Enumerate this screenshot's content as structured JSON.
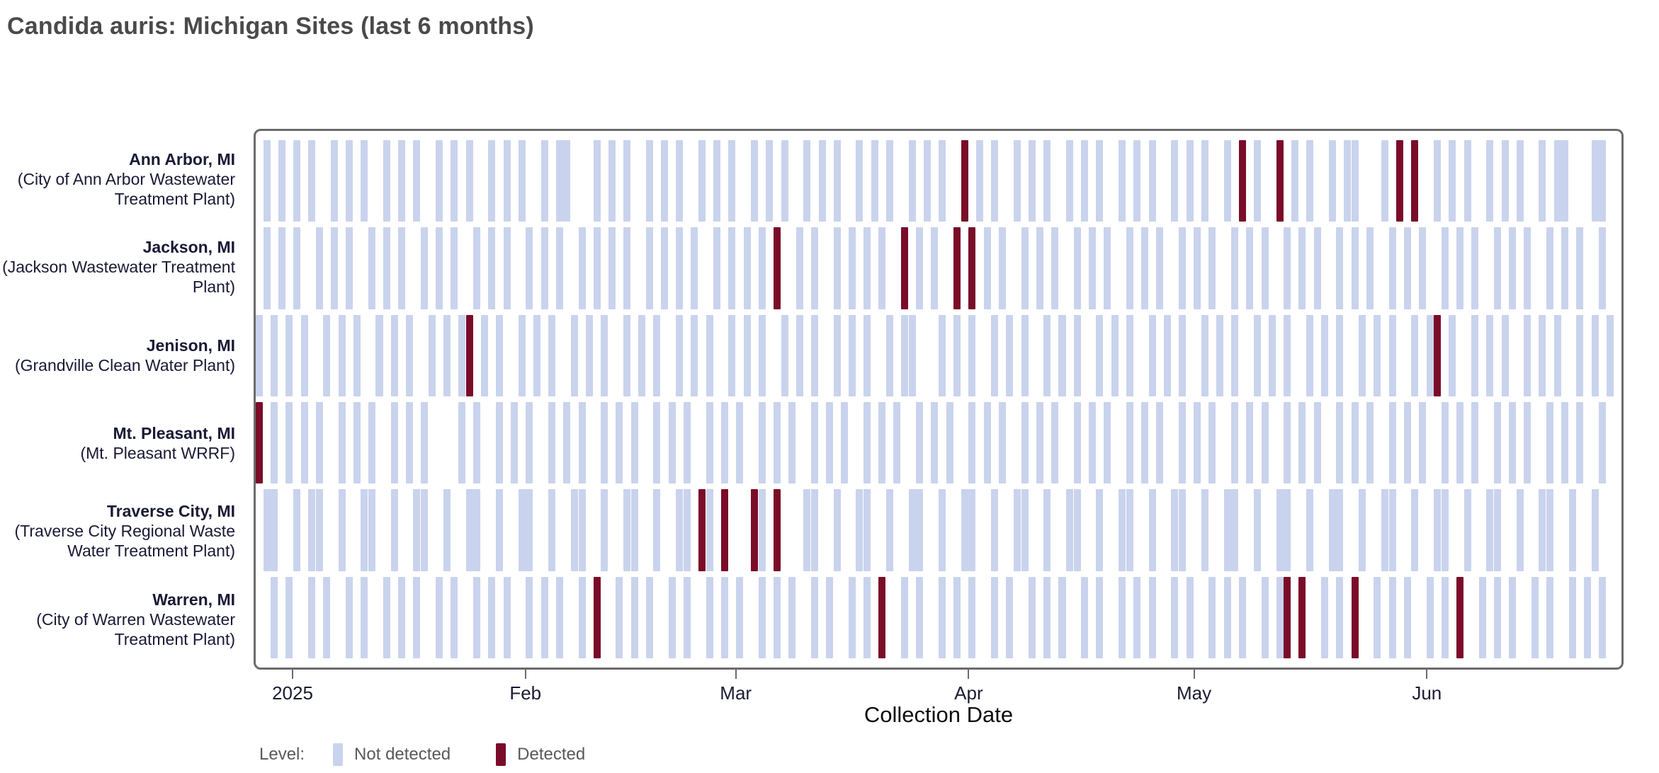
{
  "page": {
    "title": "Candida auris: Michigan Sites (last 6 months)"
  },
  "chart_data": {
    "type": "heatmap",
    "subtype": "detection-timeline-tiles",
    "title": "Candida auris: Michigan Sites (last 6 months)",
    "xlabel": "Collection Date",
    "day0_date": "2025-01-01",
    "x_domain_days": [
      -5,
      177
    ],
    "x_ticks": [
      {
        "day": 0,
        "label": "2025"
      },
      {
        "day": 31,
        "label": "Feb"
      },
      {
        "day": 59,
        "label": "Mar"
      },
      {
        "day": 90,
        "label": "Apr"
      },
      {
        "day": 120,
        "label": "May"
      },
      {
        "day": 151,
        "label": "Jun"
      }
    ],
    "grid": false,
    "legend_position": "bottom-left",
    "legend": {
      "prefix": "Level:",
      "items": [
        {
          "label": "Not detected",
          "color": "#cad3ed",
          "value": 0
        },
        {
          "label": "Detected",
          "color": "#7a0c29",
          "value": 1
        }
      ]
    },
    "colors": {
      "not_detected": "#cad3ed",
      "detected": "#7a0c29",
      "label_text": "#191936"
    },
    "sites": [
      {
        "city": "Ann Arbor, MI",
        "plant": "(City of Ann Arbor Wastewater Treatment Plant)",
        "samples": [
          -4,
          -2,
          0,
          2,
          5,
          7,
          9,
          12,
          14,
          16,
          19,
          21,
          23,
          26,
          28,
          30,
          33,
          35,
          36,
          40,
          42,
          44,
          47,
          49,
          51,
          54,
          56,
          58,
          61,
          63,
          65,
          68,
          70,
          72,
          75,
          77,
          79,
          82,
          84,
          86,
          89,
          91,
          93,
          96,
          98,
          100,
          103,
          105,
          107,
          110,
          112,
          114,
          117,
          119,
          121,
          124,
          126,
          128,
          131,
          133,
          135,
          138,
          140,
          141,
          145,
          147,
          149,
          152,
          154,
          156,
          159,
          161,
          163,
          166,
          168,
          169,
          173,
          174
        ],
        "detected": [
          89,
          126,
          131,
          147,
          149
        ],
        "detected_dates": [
          "2025-03-31",
          "2025-05-07",
          "2025-05-12",
          "2025-05-28",
          "2025-05-30"
        ]
      },
      {
        "city": "Jackson, MI",
        "plant": "(Jackson Wastewater Treatment Plant)",
        "samples": [
          -4,
          -2,
          0,
          3,
          5,
          7,
          10,
          12,
          14,
          17,
          19,
          21,
          24,
          26,
          28,
          31,
          33,
          35,
          38,
          40,
          42,
          44,
          47,
          49,
          51,
          53,
          56,
          58,
          60,
          62,
          64,
          67,
          69,
          72,
          74,
          76,
          78,
          81,
          83,
          85,
          88,
          90,
          92,
          94,
          97,
          99,
          101,
          104,
          106,
          108,
          111,
          113,
          115,
          118,
          120,
          122,
          125,
          127,
          129,
          132,
          134,
          136,
          139,
          141,
          143,
          146,
          148,
          150,
          153,
          155,
          157,
          160,
          162,
          164,
          167,
          169,
          171,
          174
        ],
        "detected": [
          64,
          81,
          88,
          90
        ],
        "detected_dates": [
          "2025-03-06",
          "2025-03-23",
          "2025-03-30",
          "2025-04-01"
        ]
      },
      {
        "city": "Jenison, MI",
        "plant": "(Grandville Clean Water Plant)",
        "samples": [
          -5,
          -3,
          -1,
          1,
          4,
          6,
          8,
          11,
          13,
          15,
          18,
          20,
          22,
          23,
          25,
          27,
          30,
          32,
          34,
          37,
          39,
          41,
          44,
          46,
          48,
          51,
          53,
          55,
          58,
          60,
          62,
          65,
          67,
          69,
          72,
          74,
          76,
          79,
          81,
          82,
          86,
          88,
          90,
          93,
          95,
          97,
          100,
          102,
          104,
          107,
          109,
          111,
          114,
          116,
          118,
          121,
          123,
          125,
          128,
          130,
          132,
          135,
          137,
          139,
          142,
          144,
          146,
          149,
          151,
          152,
          154,
          157,
          159,
          161,
          164,
          166,
          168,
          171,
          173,
          175
        ],
        "detected": [
          23,
          152
        ],
        "detected_dates": [
          "2025-01-24",
          "2025-06-02"
        ]
      },
      {
        "city": "Mt. Pleasant, MI",
        "plant": "(Mt. Pleasant WRRF)",
        "samples": [
          -5,
          -3,
          -1,
          1,
          3,
          6,
          8,
          10,
          13,
          15,
          17,
          22,
          24,
          27,
          29,
          31,
          34,
          36,
          38,
          41,
          43,
          45,
          48,
          50,
          52,
          55,
          57,
          59,
          62,
          64,
          66,
          69,
          71,
          73,
          76,
          78,
          80,
          83,
          85,
          87,
          90,
          92,
          94,
          97,
          99,
          101,
          104,
          106,
          108,
          111,
          113,
          115,
          118,
          120,
          122,
          125,
          127,
          129,
          132,
          134,
          136,
          139,
          141,
          143,
          146,
          148,
          150,
          153,
          155,
          157,
          160,
          162,
          164,
          167,
          169,
          171,
          174
        ],
        "detected": [
          -5
        ],
        "detected_dates": [
          "2024-12-27"
        ]
      },
      {
        "city": "Traverse City, MI",
        "plant": "(Traverse City Regional Waste Water Treatment Plant)",
        "samples": [
          -4,
          -3,
          0,
          2,
          3,
          6,
          9,
          10,
          13,
          16,
          17,
          20,
          23,
          24,
          27,
          30,
          31,
          34,
          37,
          38,
          41,
          44,
          45,
          48,
          51,
          52,
          54,
          55,
          57,
          61,
          62,
          64,
          68,
          69,
          72,
          75,
          76,
          79,
          82,
          83,
          86,
          89,
          90,
          93,
          96,
          97,
          100,
          103,
          104,
          107,
          110,
          111,
          114,
          117,
          118,
          121,
          124,
          125,
          128,
          131,
          132,
          135,
          138,
          139,
          142,
          145,
          146,
          149,
          152,
          153,
          156,
          159,
          160,
          163,
          166,
          167,
          170,
          173
        ],
        "detected": [
          54,
          57,
          61,
          64
        ],
        "detected_dates": [
          "2025-02-24",
          "2025-02-27",
          "2025-03-03",
          "2025-03-06"
        ]
      },
      {
        "city": "Warren, MI",
        "plant": "(City of Warren Wastewater Treatment Plant)",
        "samples": [
          -3,
          -1,
          2,
          4,
          7,
          9,
          12,
          14,
          16,
          19,
          21,
          24,
          26,
          28,
          31,
          33,
          35,
          38,
          40,
          43,
          45,
          47,
          50,
          52,
          55,
          57,
          59,
          62,
          64,
          66,
          69,
          71,
          74,
          76,
          78,
          81,
          83,
          86,
          88,
          90,
          93,
          95,
          98,
          100,
          102,
          105,
          107,
          110,
          112,
          114,
          117,
          119,
          122,
          124,
          126,
          129,
          131,
          132,
          134,
          137,
          139,
          141,
          144,
          146,
          148,
          151,
          153,
          155,
          158,
          160,
          162,
          165,
          167,
          170,
          172,
          174
        ],
        "detected": [
          40,
          78,
          132,
          134,
          141,
          155
        ],
        "detected_dates": [
          "2025-02-10",
          "2025-03-20",
          "2025-05-13",
          "2025-05-15",
          "2025-05-22",
          "2025-06-05"
        ]
      }
    ]
  }
}
